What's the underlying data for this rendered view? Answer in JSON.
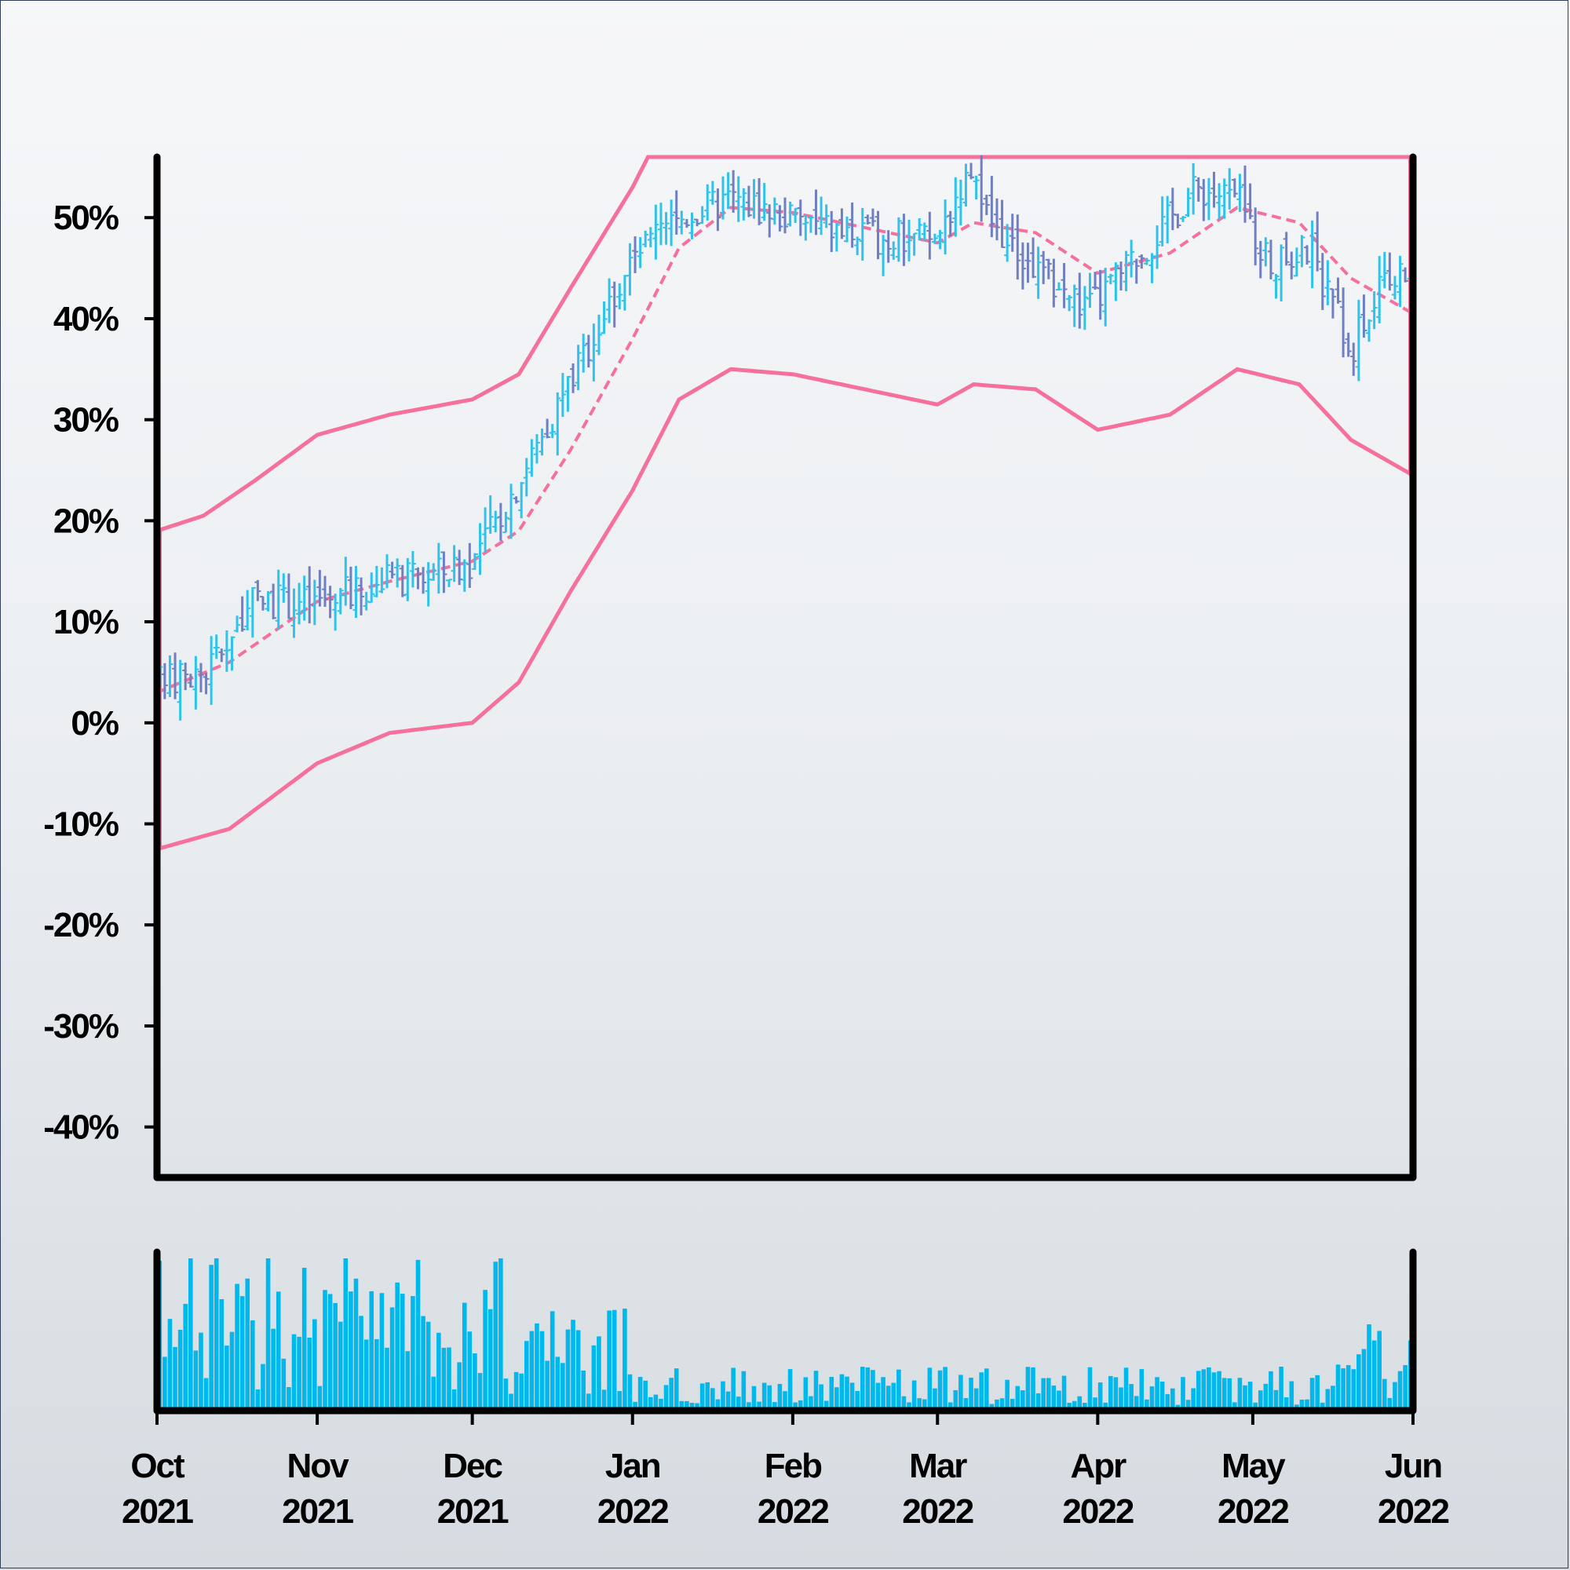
{
  "chart_data": {
    "type": "ohlc",
    "title": "",
    "xlabel": "",
    "ylabel": "",
    "ylim": [
      -0.45,
      0.56
    ],
    "grid": false,
    "legend": "none",
    "colors": {
      "up": "#2fc3eb",
      "down": "#6f7fc2",
      "bands": "#f5719c",
      "volume": "#00b8ec",
      "frame": "#000000"
    },
    "y_ticks": [
      {
        "value": 0.5,
        "label": "50%"
      },
      {
        "value": 0.4,
        "label": "40%"
      },
      {
        "value": 0.3,
        "label": "30%"
      },
      {
        "value": 0.2,
        "label": "20%"
      },
      {
        "value": 0.1,
        "label": "10%"
      },
      {
        "value": 0.0,
        "label": "0%"
      },
      {
        "value": -0.1,
        "label": "-10%"
      },
      {
        "value": -0.2,
        "label": "-20%"
      },
      {
        "value": -0.3,
        "label": "-30%"
      },
      {
        "value": -0.4,
        "label": "-40%"
      }
    ],
    "x_ticks": [
      {
        "date": "2021-10-01",
        "month": "Oct",
        "year": "2021"
      },
      {
        "date": "2021-11-01",
        "month": "Nov",
        "year": "2021"
      },
      {
        "date": "2021-12-01",
        "month": "Dec",
        "year": "2021"
      },
      {
        "date": "2022-01-01",
        "month": "Jan",
        "year": "2022"
      },
      {
        "date": "2022-02-01",
        "month": "Feb",
        "year": "2022"
      },
      {
        "date": "2022-03-01",
        "month": "Mar",
        "year": "2022"
      },
      {
        "date": "2022-04-01",
        "month": "Apr",
        "year": "2022"
      },
      {
        "date": "2022-05-01",
        "month": "May",
        "year": "2022"
      },
      {
        "date": "2022-06-01",
        "month": "Jun",
        "year": "2022"
      }
    ],
    "x_range": [
      "2021-10-01",
      "2022-06-01"
    ],
    "close_anchors": [
      {
        "date": "2021-10-01",
        "value": 0.04
      },
      {
        "date": "2021-10-10",
        "value": 0.05
      },
      {
        "date": "2021-10-20",
        "value": 0.12
      },
      {
        "date": "2021-11-01",
        "value": 0.12
      },
      {
        "date": "2021-11-15",
        "value": 0.14
      },
      {
        "date": "2021-11-25",
        "value": 0.15
      },
      {
        "date": "2021-12-01",
        "value": 0.16
      },
      {
        "date": "2021-12-10",
        "value": 0.24
      },
      {
        "date": "2021-12-20",
        "value": 0.34
      },
      {
        "date": "2022-01-01",
        "value": 0.46
      },
      {
        "date": "2022-01-10",
        "value": 0.5
      },
      {
        "date": "2022-01-20",
        "value": 0.52
      },
      {
        "date": "2022-02-01",
        "value": 0.5
      },
      {
        "date": "2022-02-15",
        "value": 0.48
      },
      {
        "date": "2022-03-01",
        "value": 0.48
      },
      {
        "date": "2022-03-06",
        "value": 0.54
      },
      {
        "date": "2022-03-15",
        "value": 0.47
      },
      {
        "date": "2022-03-30",
        "value": 0.41
      },
      {
        "date": "2022-04-10",
        "value": 0.47
      },
      {
        "date": "2022-04-20",
        "value": 0.53
      },
      {
        "date": "2022-04-28",
        "value": 0.52
      },
      {
        "date": "2022-05-05",
        "value": 0.45
      },
      {
        "date": "2022-05-12",
        "value": 0.47
      },
      {
        "date": "2022-05-20",
        "value": 0.37
      },
      {
        "date": "2022-05-26",
        "value": 0.43
      },
      {
        "date": "2022-06-01",
        "value": 0.45
      }
    ],
    "band_middle": [
      {
        "date": "2021-10-01",
        "value": 0.03
      },
      {
        "date": "2021-10-15",
        "value": 0.06
      },
      {
        "date": "2021-11-01",
        "value": 0.12
      },
      {
        "date": "2021-11-15",
        "value": 0.14
      },
      {
        "date": "2021-12-01",
        "value": 0.16
      },
      {
        "date": "2021-12-10",
        "value": 0.19
      },
      {
        "date": "2021-12-20",
        "value": 0.27
      },
      {
        "date": "2022-01-01",
        "value": 0.38
      },
      {
        "date": "2022-01-10",
        "value": 0.47
      },
      {
        "date": "2022-01-20",
        "value": 0.51
      },
      {
        "date": "2022-02-01",
        "value": 0.505
      },
      {
        "date": "2022-02-15",
        "value": 0.49
      },
      {
        "date": "2022-03-01",
        "value": 0.475
      },
      {
        "date": "2022-03-08",
        "value": 0.495
      },
      {
        "date": "2022-03-20",
        "value": 0.485
      },
      {
        "date": "2022-04-01",
        "value": 0.445
      },
      {
        "date": "2022-04-15",
        "value": 0.465
      },
      {
        "date": "2022-04-28",
        "value": 0.51
      },
      {
        "date": "2022-05-10",
        "value": 0.495
      },
      {
        "date": "2022-05-20",
        "value": 0.44
      },
      {
        "date": "2022-06-01",
        "value": 0.405
      }
    ],
    "band_upper": [
      {
        "date": "2021-10-01",
        "value": 0.19
      },
      {
        "date": "2021-10-10",
        "value": 0.205
      },
      {
        "date": "2021-10-20",
        "value": 0.24
      },
      {
        "date": "2021-11-01",
        "value": 0.285
      },
      {
        "date": "2021-11-15",
        "value": 0.305
      },
      {
        "date": "2021-12-01",
        "value": 0.32
      },
      {
        "date": "2021-12-10",
        "value": 0.345
      },
      {
        "date": "2021-12-20",
        "value": 0.43
      },
      {
        "date": "2022-01-01",
        "value": 0.53
      },
      {
        "date": "2022-01-04",
        "value": 0.56
      },
      {
        "date": "2022-06-01",
        "value": 0.56
      }
    ],
    "band_lower": [
      {
        "date": "2021-10-01",
        "value": -0.125
      },
      {
        "date": "2021-10-15",
        "value": -0.105
      },
      {
        "date": "2021-11-01",
        "value": -0.04
      },
      {
        "date": "2021-11-15",
        "value": -0.01
      },
      {
        "date": "2021-12-01",
        "value": 0.0
      },
      {
        "date": "2021-12-10",
        "value": 0.04
      },
      {
        "date": "2021-12-20",
        "value": 0.13
      },
      {
        "date": "2022-01-01",
        "value": 0.23
      },
      {
        "date": "2022-01-10",
        "value": 0.32
      },
      {
        "date": "2022-01-20",
        "value": 0.35
      },
      {
        "date": "2022-02-01",
        "value": 0.345
      },
      {
        "date": "2022-02-15",
        "value": 0.33
      },
      {
        "date": "2022-03-01",
        "value": 0.315
      },
      {
        "date": "2022-03-08",
        "value": 0.335
      },
      {
        "date": "2022-03-20",
        "value": 0.33
      },
      {
        "date": "2022-04-01",
        "value": 0.29
      },
      {
        "date": "2022-04-15",
        "value": 0.305
      },
      {
        "date": "2022-04-28",
        "value": 0.35
      },
      {
        "date": "2022-05-10",
        "value": 0.335
      },
      {
        "date": "2022-05-20",
        "value": 0.28
      },
      {
        "date": "2022-06-01",
        "value": 0.245
      }
    ],
    "volume_phases": [
      {
        "start": "2021-10-01",
        "end": "2021-12-07",
        "level": 0.55
      },
      {
        "start": "2021-12-07",
        "end": "2022-01-01",
        "level": 0.35
      },
      {
        "start": "2022-01-01",
        "end": "2022-05-15",
        "level": 0.15
      },
      {
        "start": "2022-05-15",
        "end": "2022-06-01",
        "level": 0.3
      }
    ]
  }
}
